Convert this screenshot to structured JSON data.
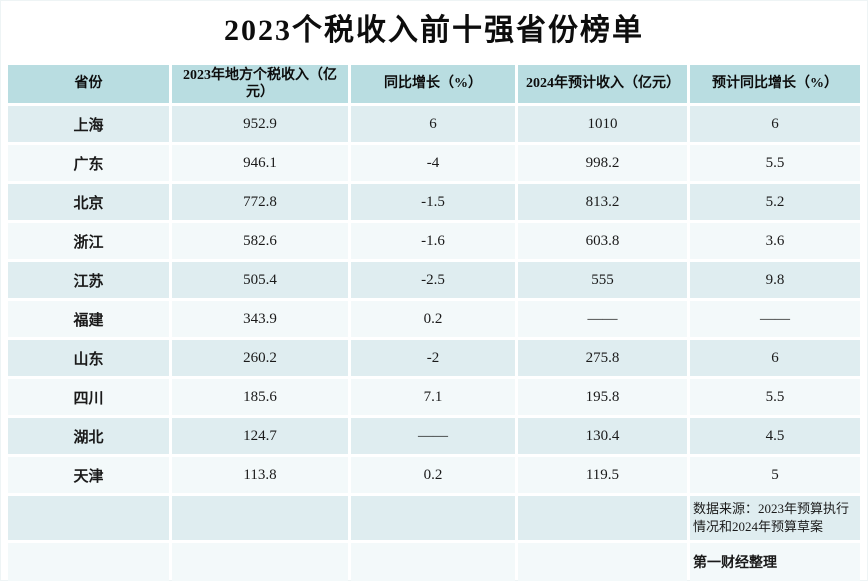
{
  "chart_data": {
    "type": "table",
    "title": "2023个税收入前十强省份榜单",
    "columns": [
      "省份",
      "2023年地方个税收入（亿元）",
      "同比增长（%）",
      "2024年预计收入（亿元）",
      "预计同比增长（%）"
    ],
    "rows": [
      [
        "上海",
        "952.9",
        "6",
        "1010",
        "6"
      ],
      [
        "广东",
        "946.1",
        "-4",
        "998.2",
        "5.5"
      ],
      [
        "北京",
        "772.8",
        "-1.5",
        "813.2",
        "5.2"
      ],
      [
        "浙江",
        "582.6",
        "-1.6",
        "603.8",
        "3.6"
      ],
      [
        "江苏",
        "505.4",
        "-2.5",
        "555",
        "9.8"
      ],
      [
        "福建",
        "343.9",
        "0.2",
        "——",
        "——"
      ],
      [
        "山东",
        "260.2",
        "-2",
        "275.8",
        "6"
      ],
      [
        "四川",
        "185.6",
        "7.1",
        "195.8",
        "5.5"
      ],
      [
        "湖北",
        "124.7",
        "——",
        "130.4",
        "4.5"
      ],
      [
        "天津",
        "113.8",
        "0.2",
        "119.5",
        "5"
      ]
    ],
    "source_note": "数据来源：2023年预算执行情况和2024年预算草案",
    "credit": "第一财经整理"
  },
  "colors": {
    "header_bg": "#b9dde1",
    "row_odd_bg": "#dfedf0",
    "row_even_bg": "#f3f9fa",
    "page_bg": "#ffffff",
    "text": "#111111"
  }
}
